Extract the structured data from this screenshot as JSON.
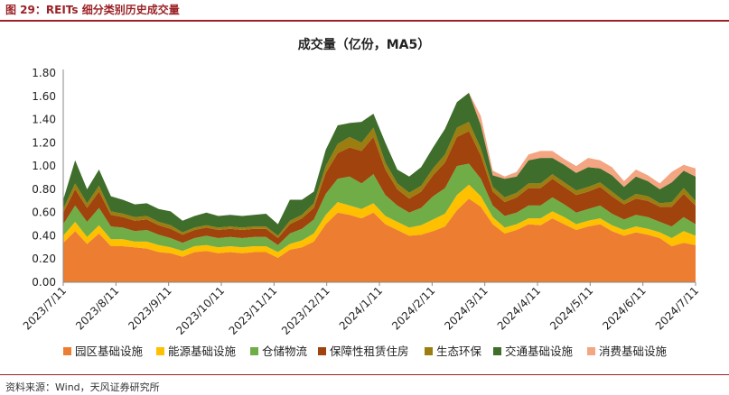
{
  "figure": {
    "header": "图 29：REITs 细分类别历史成交量",
    "source": "资料来源：Wind，天风证券研究所"
  },
  "colors": {
    "header": "#9b2226",
    "axis": "#888888",
    "text": "#222222"
  },
  "chart_data": {
    "type": "area",
    "stacked": true,
    "title": "成交量（亿份，MA5）",
    "xlabel": "",
    "ylabel": "",
    "ylim": [
      0,
      1.8
    ],
    "yticks": [
      0.0,
      0.2,
      0.4,
      0.6,
      0.8,
      1.0,
      1.2,
      1.4,
      1.6,
      1.8
    ],
    "ytick_labels": [
      "0.00",
      "0.20",
      "0.40",
      "0.60",
      "0.80",
      "1.00",
      "1.20",
      "1.40",
      "1.60",
      "1.80"
    ],
    "xtick_labels": [
      "2023/7/11",
      "2023/8/11",
      "2023/9/11",
      "2023/10/11",
      "2023/11/11",
      "2023/12/11",
      "2024/1/11",
      "2024/2/11",
      "2024/3/11",
      "2024/4/11",
      "2024/5/11",
      "2024/6/11",
      "2024/7/11"
    ],
    "grid": false,
    "legend": "bottom",
    "x": [
      "2023/7/11",
      "2023/7/18",
      "2023/7/25",
      "2023/8/1",
      "2023/8/8",
      "2023/8/15",
      "2023/8/22",
      "2023/8/29",
      "2023/9/5",
      "2023/9/12",
      "2023/9/19",
      "2023/9/26",
      "2023/10/3",
      "2023/10/10",
      "2023/10/17",
      "2023/10/24",
      "2023/10/31",
      "2023/11/7",
      "2023/11/14",
      "2023/11/21",
      "2023/11/28",
      "2023/12/5",
      "2023/12/12",
      "2023/12/19",
      "2023/12/26",
      "2024/1/2",
      "2024/1/9",
      "2024/1/16",
      "2024/1/23",
      "2024/1/30",
      "2024/2/6",
      "2024/2/13",
      "2024/2/20",
      "2024/2/27",
      "2024/3/5",
      "2024/3/12",
      "2024/3/19",
      "2024/3/26",
      "2024/4/2",
      "2024/4/9",
      "2024/4/16",
      "2024/4/23",
      "2024/4/30",
      "2024/5/7",
      "2024/5/14",
      "2024/5/21",
      "2024/5/28",
      "2024/6/4",
      "2024/6/11",
      "2024/6/18",
      "2024/6/25",
      "2024/7/2",
      "2024/7/9",
      "2024/7/11"
    ],
    "series": [
      {
        "name": "园区基础设施",
        "color": "#ed7d31",
        "values": [
          0.34,
          0.44,
          0.33,
          0.42,
          0.31,
          0.31,
          0.3,
          0.29,
          0.26,
          0.25,
          0.22,
          0.26,
          0.27,
          0.25,
          0.26,
          0.25,
          0.26,
          0.26,
          0.21,
          0.28,
          0.3,
          0.35,
          0.5,
          0.6,
          0.58,
          0.55,
          0.6,
          0.5,
          0.45,
          0.4,
          0.41,
          0.44,
          0.48,
          0.62,
          0.72,
          0.65,
          0.5,
          0.42,
          0.45,
          0.5,
          0.49,
          0.55,
          0.5,
          0.45,
          0.48,
          0.5,
          0.44,
          0.4,
          0.43,
          0.41,
          0.38,
          0.31,
          0.34,
          0.32
        ]
      },
      {
        "name": "能源基础设施",
        "color": "#ffc000",
        "values": [
          0.06,
          0.08,
          0.06,
          0.07,
          0.06,
          0.06,
          0.05,
          0.06,
          0.06,
          0.05,
          0.05,
          0.05,
          0.05,
          0.05,
          0.05,
          0.05,
          0.05,
          0.05,
          0.05,
          0.05,
          0.06,
          0.07,
          0.08,
          0.09,
          0.08,
          0.08,
          0.08,
          0.07,
          0.07,
          0.07,
          0.08,
          0.1,
          0.11,
          0.13,
          0.12,
          0.09,
          0.06,
          0.05,
          0.05,
          0.05,
          0.06,
          0.06,
          0.06,
          0.05,
          0.05,
          0.05,
          0.05,
          0.05,
          0.05,
          0.05,
          0.05,
          0.07,
          0.1,
          0.08
        ]
      },
      {
        "name": "仓储物流",
        "color": "#70ad47",
        "values": [
          0.1,
          0.14,
          0.13,
          0.15,
          0.11,
          0.1,
          0.09,
          0.1,
          0.09,
          0.08,
          0.07,
          0.07,
          0.08,
          0.08,
          0.08,
          0.08,
          0.08,
          0.08,
          0.06,
          0.09,
          0.1,
          0.12,
          0.18,
          0.2,
          0.25,
          0.22,
          0.25,
          0.18,
          0.14,
          0.13,
          0.15,
          0.2,
          0.22,
          0.25,
          0.18,
          0.15,
          0.1,
          0.1,
          0.1,
          0.11,
          0.11,
          0.12,
          0.11,
          0.1,
          0.1,
          0.11,
          0.1,
          0.09,
          0.1,
          0.1,
          0.09,
          0.1,
          0.12,
          0.1
        ]
      },
      {
        "name": "保障性租赁住房",
        "color": "#a0430d",
        "values": [
          0.1,
          0.14,
          0.12,
          0.14,
          0.1,
          0.09,
          0.09,
          0.09,
          0.08,
          0.08,
          0.07,
          0.07,
          0.07,
          0.07,
          0.07,
          0.07,
          0.07,
          0.07,
          0.06,
          0.08,
          0.09,
          0.1,
          0.18,
          0.22,
          0.25,
          0.28,
          0.32,
          0.22,
          0.14,
          0.12,
          0.14,
          0.18,
          0.22,
          0.25,
          0.28,
          0.2,
          0.12,
          0.12,
          0.13,
          0.15,
          0.15,
          0.16,
          0.15,
          0.15,
          0.15,
          0.16,
          0.15,
          0.13,
          0.14,
          0.14,
          0.13,
          0.17,
          0.2,
          0.16
        ]
      },
      {
        "name": "生态环保",
        "color": "#9c7d10",
        "values": [
          0.03,
          0.05,
          0.04,
          0.05,
          0.03,
          0.03,
          0.03,
          0.03,
          0.03,
          0.03,
          0.02,
          0.02,
          0.02,
          0.02,
          0.02,
          0.02,
          0.02,
          0.02,
          0.02,
          0.03,
          0.03,
          0.04,
          0.06,
          0.08,
          0.09,
          0.07,
          0.08,
          0.06,
          0.05,
          0.05,
          0.05,
          0.06,
          0.07,
          0.08,
          0.08,
          0.06,
          0.04,
          0.04,
          0.04,
          0.04,
          0.04,
          0.04,
          0.04,
          0.04,
          0.04,
          0.04,
          0.04,
          0.03,
          0.04,
          0.04,
          0.03,
          0.04,
          0.05,
          0.04
        ]
      },
      {
        "name": "交通基础设施",
        "color": "#3f6d2b",
        "values": [
          0.08,
          0.2,
          0.12,
          0.14,
          0.13,
          0.12,
          0.11,
          0.11,
          0.11,
          0.12,
          0.1,
          0.1,
          0.11,
          0.1,
          0.1,
          0.1,
          0.1,
          0.11,
          0.1,
          0.18,
          0.13,
          0.1,
          0.14,
          0.16,
          0.12,
          0.18,
          0.12,
          0.17,
          0.12,
          0.14,
          0.16,
          0.18,
          0.22,
          0.22,
          0.25,
          0.2,
          0.1,
          0.16,
          0.14,
          0.2,
          0.22,
          0.14,
          0.15,
          0.15,
          0.17,
          0.12,
          0.14,
          0.12,
          0.15,
          0.13,
          0.12,
          0.17,
          0.15,
          0.21
        ]
      },
      {
        "name": "消费基础设施",
        "color": "#f4a582",
        "values": [
          0.0,
          0.0,
          0.0,
          0.0,
          0.0,
          0.0,
          0.0,
          0.0,
          0.0,
          0.0,
          0.0,
          0.0,
          0.0,
          0.0,
          0.0,
          0.0,
          0.0,
          0.0,
          0.0,
          0.0,
          0.0,
          0.0,
          0.0,
          0.0,
          0.0,
          0.0,
          0.0,
          0.0,
          0.0,
          0.0,
          0.0,
          0.0,
          0.0,
          0.0,
          0.0,
          0.08,
          0.04,
          0.02,
          0.04,
          0.05,
          0.06,
          0.06,
          0.05,
          0.06,
          0.08,
          0.07,
          0.07,
          0.05,
          0.06,
          0.05,
          0.05,
          0.09,
          0.05,
          0.07
        ]
      }
    ]
  }
}
